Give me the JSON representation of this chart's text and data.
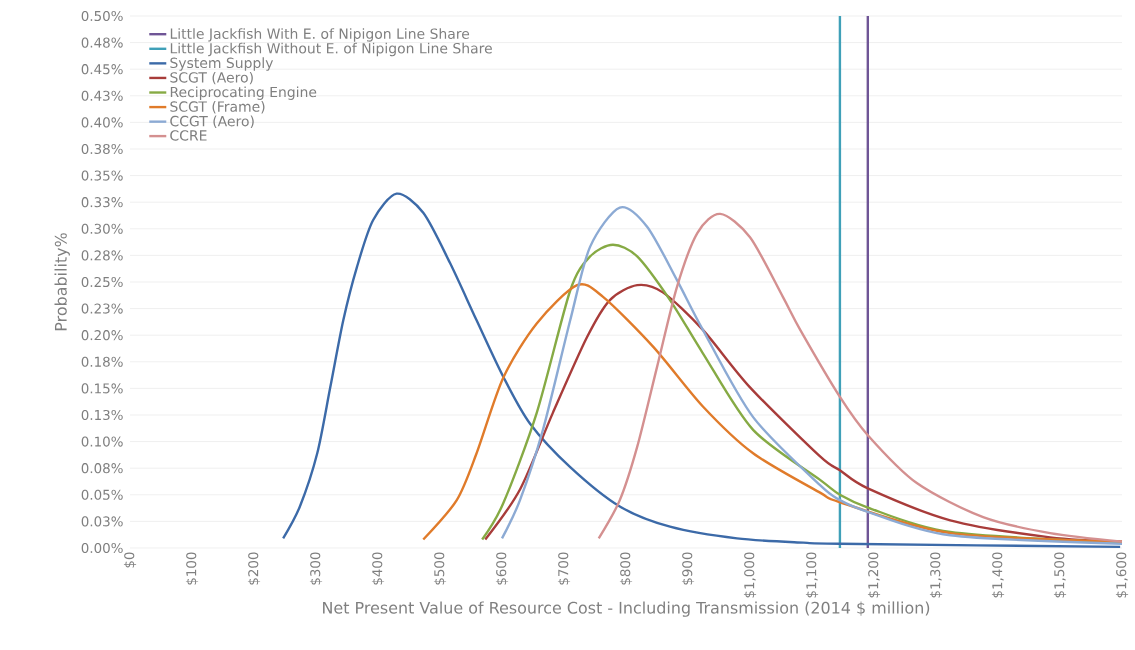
{
  "chart_data": {
    "type": "line",
    "xlabel": "Net Present Value of Resource Cost - Including Transmission (2014 $ million)",
    "ylabel": "Probability%",
    "xlim": [
      0,
      1600
    ],
    "xticks": [
      {
        "value": 0,
        "label": "$0"
      },
      {
        "value": 100,
        "label": "$100"
      },
      {
        "value": 200,
        "label": "$200"
      },
      {
        "value": 300,
        "label": "$300"
      },
      {
        "value": 400,
        "label": "$400"
      },
      {
        "value": 500,
        "label": "$500"
      },
      {
        "value": 600,
        "label": "$600"
      },
      {
        "value": 700,
        "label": "$700"
      },
      {
        "value": 800,
        "label": "$800"
      },
      {
        "value": 900,
        "label": "$900"
      },
      {
        "value": 1000,
        "label": "$1,000"
      },
      {
        "value": 1100,
        "label": "$1,100"
      },
      {
        "value": 1200,
        "label": "$1,200"
      },
      {
        "value": 1300,
        "label": "$1,300"
      },
      {
        "value": 1400,
        "label": "$1,400"
      },
      {
        "value": 1500,
        "label": "$1,500"
      },
      {
        "value": 1600,
        "label": "$1,600"
      }
    ],
    "ylim": [
      0,
      0.5
    ],
    "yticks": [
      {
        "value": 0,
        "label": "0.00%"
      },
      {
        "value": 0.025,
        "label": "0.03%"
      },
      {
        "value": 0.05,
        "label": "0.05%"
      },
      {
        "value": 0.075,
        "label": "0.08%"
      },
      {
        "value": 0.1,
        "label": "0.10%"
      },
      {
        "value": 0.125,
        "label": "0.13%"
      },
      {
        "value": 0.15,
        "label": "0.15%"
      },
      {
        "value": 0.175,
        "label": "0.18%"
      },
      {
        "value": 0.2,
        "label": "0.20%"
      },
      {
        "value": 0.225,
        "label": "0.23%"
      },
      {
        "value": 0.25,
        "label": "0.25%"
      },
      {
        "value": 0.275,
        "label": "0.28%"
      },
      {
        "value": 0.3,
        "label": "0.30%"
      },
      {
        "value": 0.325,
        "label": "0.33%"
      },
      {
        "value": 0.35,
        "label": "0.35%"
      },
      {
        "value": 0.375,
        "label": "0.38%"
      },
      {
        "value": 0.4,
        "label": "0.40%"
      },
      {
        "value": 0.425,
        "label": "0.43%"
      },
      {
        "value": 0.45,
        "label": "0.45%"
      },
      {
        "value": 0.475,
        "label": "0.48%"
      },
      {
        "value": 0.5,
        "label": "0.50%"
      }
    ],
    "grid": "y",
    "legend": "top left",
    "series": [
      {
        "name": "Little Jackfish With E. of Nipigon Line Share",
        "color": "#6f5596",
        "x": [
          1190,
          1190
        ],
        "values": [
          0,
          0.5
        ]
      },
      {
        "name": "Little Jackfish Without E. of Nipigon Line Share",
        "color": "#3fa0b8",
        "x": [
          1145,
          1145
        ],
        "values": [
          0,
          0.5
        ]
      },
      {
        "name": "System Supply",
        "color": "#3c6aa8",
        "x": [
          247,
          274,
          302,
          323,
          344,
          366,
          392,
          430,
          473,
          516,
          559,
          602,
          645,
          710,
          790,
          871,
          979,
          1086,
          1145,
          1597
        ],
        "values": [
          0.009,
          0.039,
          0.089,
          0.151,
          0.214,
          0.264,
          0.308,
          0.333,
          0.315,
          0.268,
          0.214,
          0.161,
          0.117,
          0.076,
          0.039,
          0.02,
          0.009,
          0.005,
          0.004,
          0.001
        ]
      },
      {
        "name": "SCGT (Aero)",
        "color": "#a83c3a",
        "x": [
          573,
          629,
          682,
          737,
          774,
          818,
          860,
          924,
          1000,
          1113,
          1145,
          1190,
          1323,
          1484,
          1600
        ],
        "values": [
          0.008,
          0.055,
          0.127,
          0.198,
          0.233,
          0.247,
          0.24,
          0.205,
          0.151,
          0.086,
          0.073,
          0.056,
          0.026,
          0.01,
          0.006
        ]
      },
      {
        "name": "Reciprocating Engine",
        "color": "#86aa44",
        "x": [
          568,
          602,
          656,
          710,
          742,
          779,
          818,
          871,
          924,
          1005,
          1113,
          1145,
          1190,
          1323,
          1600
        ],
        "values": [
          0.008,
          0.042,
          0.127,
          0.242,
          0.274,
          0.285,
          0.274,
          0.233,
          0.183,
          0.111,
          0.064,
          0.05,
          0.038,
          0.015,
          0.005
        ]
      },
      {
        "name": "SCGT (Frame)",
        "color": "#e07b2a",
        "x": [
          473,
          527,
          559,
          602,
          656,
          721,
          763,
          844,
          924,
          1005,
          1113,
          1145,
          1323,
          1600
        ],
        "values": [
          0.008,
          0.045,
          0.089,
          0.16,
          0.211,
          0.247,
          0.236,
          0.189,
          0.133,
          0.089,
          0.052,
          0.043,
          0.014,
          0.006
        ]
      },
      {
        "name": "CCGT (Aero)",
        "color": "#8caad4",
        "x": [
          600,
          629,
          666,
          710,
          742,
          790,
          834,
          882,
          924,
          1005,
          1113,
          1145,
          1190,
          1323,
          1600
        ],
        "values": [
          0.009,
          0.045,
          0.111,
          0.214,
          0.283,
          0.32,
          0.302,
          0.252,
          0.205,
          0.123,
          0.059,
          0.045,
          0.034,
          0.012,
          0.004
        ]
      },
      {
        "name": "CCRE",
        "color": "#d49090",
        "x": [
          756,
          790,
          818,
          850,
          882,
          915,
          952,
          1000,
          1053,
          1081,
          1145,
          1190,
          1269,
          1376,
          1484,
          1600
        ],
        "values": [
          0.009,
          0.045,
          0.095,
          0.17,
          0.245,
          0.296,
          0.314,
          0.292,
          0.236,
          0.205,
          0.142,
          0.106,
          0.061,
          0.029,
          0.014,
          0.006
        ]
      }
    ]
  }
}
